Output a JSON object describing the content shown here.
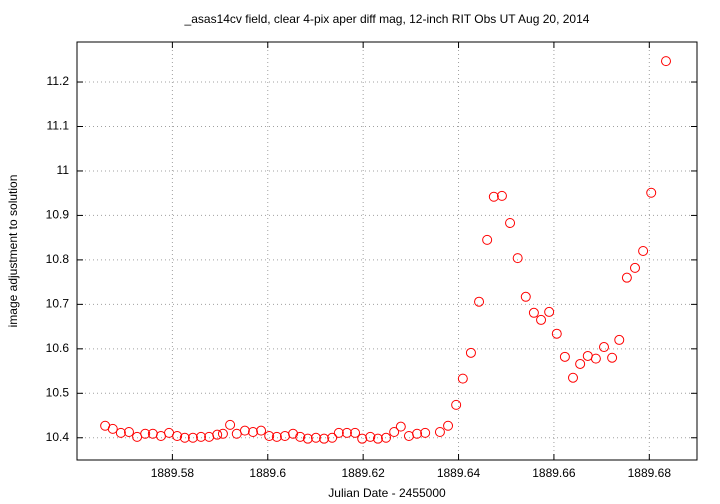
{
  "chart_data": {
    "type": "scatter",
    "title": "_asas14cv field, clear 4-pix aper diff mag,  12-inch RIT Obs UT Aug 20, 2014",
    "x_label": "Julian Date - 2455000",
    "y_label": "image adjustment to solution",
    "color": "#ff0000",
    "grid": true,
    "xlim": [
      1889.56,
      1889.69
    ],
    "ylim": [
      10.35,
      11.29
    ],
    "xticks": [
      1889.58,
      1889.6,
      1889.62,
      1889.64,
      1889.66,
      1889.68
    ],
    "yticks": [
      10.4,
      10.5,
      10.6,
      10.7,
      10.8,
      10.9,
      11,
      11.1,
      11.2
    ],
    "x": [
      1889.5659,
      1889.5675,
      1889.5692,
      1889.5709,
      1889.5726,
      1889.5743,
      1889.5759,
      1889.5776,
      1889.5793,
      1889.581,
      1889.5826,
      1889.5843,
      1889.586,
      1889.5877,
      1889.5894,
      1889.5906,
      1889.5921,
      1889.5935,
      1889.5952,
      1889.5969,
      1889.5986,
      1889.6003,
      1889.6019,
      1889.6036,
      1889.6053,
      1889.6068,
      1889.6084,
      1889.6101,
      1889.6118,
      1889.6135,
      1889.6149,
      1889.6166,
      1889.6183,
      1889.6198,
      1889.6215,
      1889.6231,
      1889.6248,
      1889.6265,
      1889.6279,
      1889.6296,
      1889.6313,
      1889.633,
      1889.6361,
      1889.6378,
      1889.6395,
      1889.6409,
      1889.6426,
      1889.6443,
      1889.646,
      1889.6474,
      1889.6491,
      1889.6508,
      1889.6524,
      1889.6541,
      1889.6558,
      1889.6573,
      1889.659,
      1889.6606,
      1889.6623,
      1889.664,
      1889.6655,
      1889.6671,
      1889.6688,
      1889.6705,
      1889.6722,
      1889.6737,
      1889.6753,
      1889.677,
      1889.6787,
      1889.6804,
      1889.6835
    ],
    "values": [
      10.427,
      10.42,
      10.411,
      10.413,
      10.402,
      10.409,
      10.409,
      10.404,
      10.411,
      10.404,
      10.4,
      10.4,
      10.402,
      10.402,
      10.407,
      10.409,
      10.429,
      10.409,
      10.416,
      10.413,
      10.416,
      10.404,
      10.402,
      10.404,
      10.409,
      10.402,
      10.398,
      10.4,
      10.398,
      10.4,
      10.411,
      10.411,
      10.411,
      10.398,
      10.402,
      10.398,
      10.4,
      10.413,
      10.425,
      10.404,
      10.409,
      10.411,
      10.413,
      10.427,
      10.474,
      10.533,
      10.591,
      10.706,
      10.845,
      10.942,
      10.944,
      10.883,
      10.804,
      10.717,
      10.681,
      10.665,
      10.683,
      10.634,
      10.582,
      10.535,
      10.566,
      10.584,
      10.578,
      10.604,
      10.58,
      10.62,
      10.76,
      10.782,
      10.82,
      10.951,
      11.247
    ]
  }
}
